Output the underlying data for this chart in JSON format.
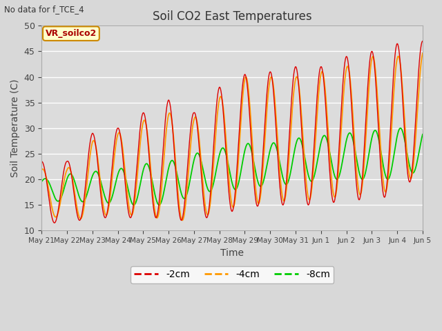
{
  "title": "Soil CO2 East Temperatures",
  "no_data_text": "No data for f_TCE_4",
  "annotation_text": "VR_soilco2",
  "xlabel": "Time",
  "ylabel": "Soil Temperature (C)",
  "ylim": [
    10,
    50
  ],
  "fig_bg_color": "#d8d8d8",
  "plot_bg_color": "#dcdcdc",
  "lines": [
    {
      "label": "-2cm",
      "color": "#dd0000"
    },
    {
      "label": "-4cm",
      "color": "#ff9900"
    },
    {
      "label": "-8cm",
      "color": "#00cc00"
    }
  ],
  "xtick_labels": [
    "May 21",
    "May 22",
    "May 23",
    "May 24",
    "May 25",
    "May 26",
    "May 27",
    "May 28",
    "May 29",
    "May 30",
    "May 31",
    "Jun 1",
    "Jun 2",
    "Jun 3",
    "Jun 4",
    "Jun 5"
  ],
  "num_days": 15,
  "samples_per_day": 240,
  "peak_2cm": [
    23.5,
    23.5,
    29,
    30,
    33,
    35.5,
    33,
    38,
    40.5,
    41,
    42,
    42,
    44,
    45,
    46.5,
    47
  ],
  "min_2cm": [
    12,
    11,
    13,
    12,
    13,
    12,
    12,
    13,
    14.5,
    15,
    15,
    15,
    16,
    16,
    17,
    22
  ],
  "peak_4cm": [
    22,
    22,
    27.5,
    29,
    31.5,
    33,
    32,
    36,
    40,
    40,
    40,
    41,
    42,
    44,
    44,
    45
  ],
  "min_4cm": [
    14,
    11.5,
    13,
    13,
    13,
    12,
    12,
    14,
    15,
    15.5,
    16,
    16,
    17,
    17,
    18,
    22
  ],
  "peak_8cm": [
    20,
    21,
    21.5,
    22,
    23,
    23.5,
    25,
    26,
    27,
    27,
    28,
    28.5,
    29,
    29.5,
    30,
    30
  ],
  "min_8cm": [
    17,
    15,
    16,
    15,
    15,
    15,
    17,
    18,
    18,
    19,
    19,
    20,
    20,
    20,
    20,
    22
  ]
}
